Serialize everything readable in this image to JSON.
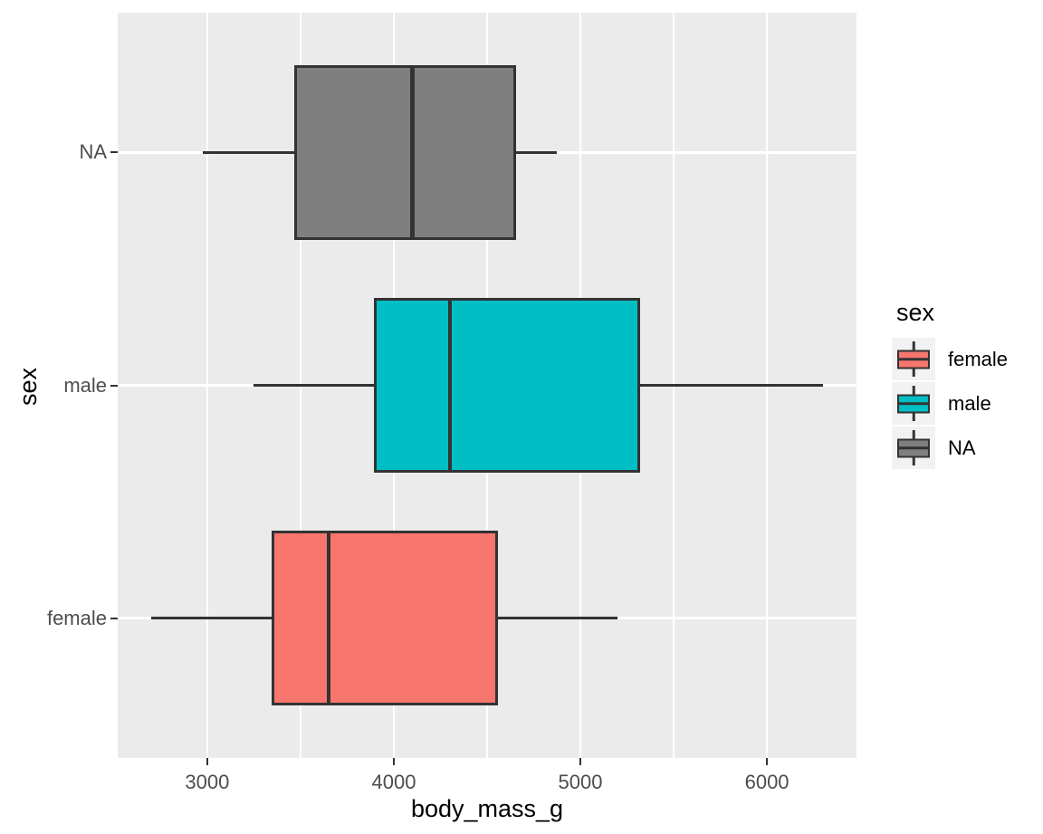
{
  "chart_data": {
    "type": "boxplot",
    "orientation": "horizontal",
    "title": "",
    "xlabel": "body_mass_g",
    "ylabel": "sex",
    "xlim": [
      2520,
      6480
    ],
    "x_major_ticks": [
      3000,
      4000,
      5000,
      6000
    ],
    "x_minor_ticks": [
      3500,
      4500,
      5500
    ],
    "categories": [
      "female",
      "male",
      "NA"
    ],
    "y_tick_labels_top_to_bottom": [
      "NA",
      "male",
      "female"
    ],
    "series": [
      {
        "category": "female",
        "fill": "#F8766D",
        "whisker_min": 2700,
        "q1": 3350,
        "median": 3650,
        "q3": 4550,
        "whisker_max": 5200
      },
      {
        "category": "male",
        "fill": "#00BFC4",
        "whisker_min": 3250,
        "q1": 3900,
        "median": 4300,
        "q3": 5312.5,
        "whisker_max": 6300
      },
      {
        "category": "NA",
        "fill": "#7F7F7F",
        "whisker_min": 2975,
        "q1": 3475,
        "median": 4100,
        "q3": 4650,
        "whisker_max": 4875
      }
    ],
    "grid": {
      "major": true,
      "minor": true
    },
    "legend": {
      "title": "sex",
      "position": "right",
      "key_background": "#F2F2F2",
      "entries": [
        {
          "label": "female",
          "color": "#F8766D"
        },
        {
          "label": "male",
          "color": "#00BFC4"
        },
        {
          "label": "NA",
          "color": "#7F7F7F"
        }
      ]
    },
    "colors": {
      "panel_background": "#EBEBEB",
      "gridline": "#FFFFFF",
      "box_border": "#333333",
      "median_line": "#333333",
      "tick_mark": "#333333",
      "tick_label": "#4D4D4D",
      "axis_title": "#000000"
    }
  }
}
